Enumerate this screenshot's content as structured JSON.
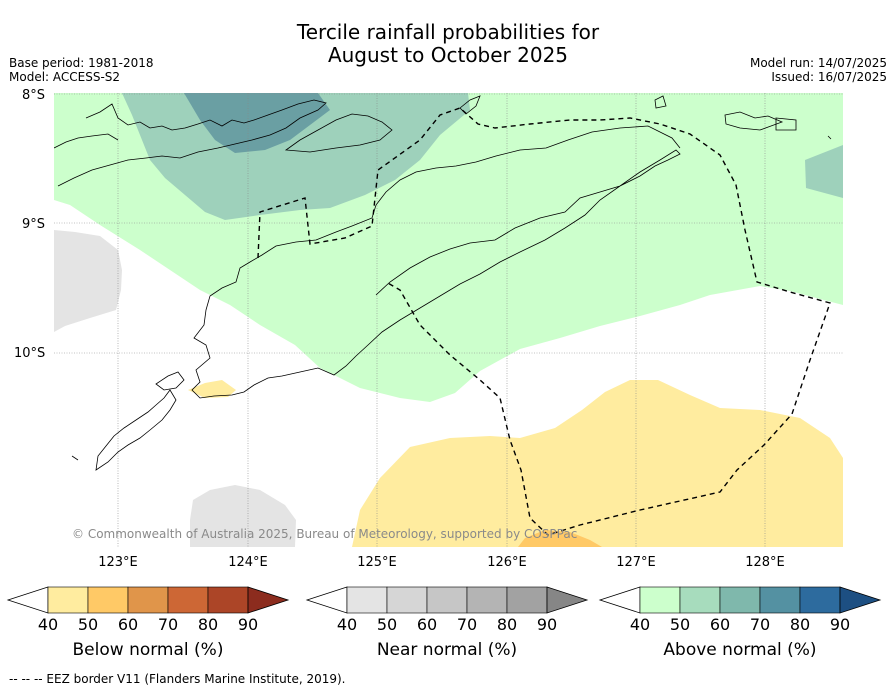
{
  "header": {
    "title_line1": "Tercile rainfall probabilities for",
    "title_line2": "August to October 2025",
    "base_period": "Base period: 1981-2018",
    "model": "Model: ACCESS-S2",
    "model_run": "Model run: 14/07/2025",
    "issued": "Issued: 16/07/2025"
  },
  "map": {
    "lat_labels": [
      "8°S",
      "9°S",
      "10°S"
    ],
    "lon_labels": [
      "123°E",
      "124°E",
      "125°E",
      "126°E",
      "127°E",
      "128°E"
    ],
    "copyright": "© Commonwealth of Australia 2025, Bureau of Meteorology, supported by COSPPac",
    "colors": {
      "above_40_50": "#ccffcc",
      "above_50_60": "#9ed1bb",
      "above_60_70": "#6a9fa3",
      "below_40_50": "#ffec9f",
      "below_50_60": "#ffc966",
      "near_40_50": "#e4e4e4",
      "land_outline": "#000000",
      "eez_line": "#000000"
    }
  },
  "colorbars": [
    {
      "label": "Below normal (%)",
      "ticks": [
        "40",
        "50",
        "60",
        "70",
        "80",
        "90"
      ],
      "colors": [
        "#ffec9f",
        "#ffc966",
        "#e0954a",
        "#cd6735",
        "#ac4527",
        "#8c2c1e"
      ]
    },
    {
      "label": "Near normal (%)",
      "ticks": [
        "40",
        "50",
        "60",
        "70",
        "80",
        "90"
      ],
      "colors": [
        "#e4e4e4",
        "#d6d6d6",
        "#c6c6c6",
        "#b4b4b4",
        "#a2a2a2",
        "#868686"
      ]
    },
    {
      "label": "Above normal (%)",
      "ticks": [
        "40",
        "50",
        "60",
        "70",
        "80",
        "90"
      ],
      "colors": [
        "#ccffcc",
        "#a7dcbd",
        "#7fb8ac",
        "#5491a2",
        "#2d6b9e",
        "#1d4f82"
      ]
    }
  ],
  "footer": {
    "legend_line": "--  --  -- EEZ border V11 (Flanders Marine Institute, 2019)."
  }
}
